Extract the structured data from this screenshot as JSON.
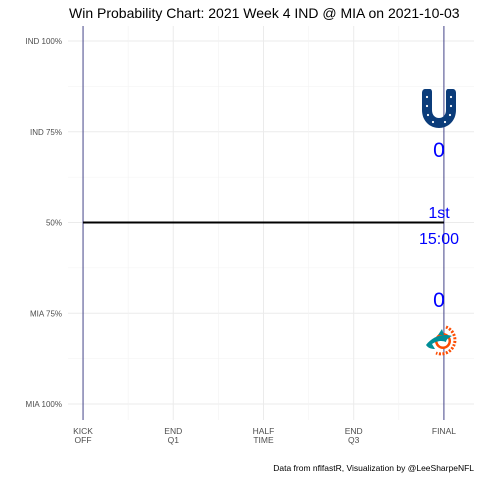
{
  "chart_data": {
    "type": "line",
    "title": "Win Probability Chart: 2021 Week 4 IND @ MIA on 2021-10-03",
    "y_ticks": [
      {
        "label": "IND 100%",
        "value": 1.0
      },
      {
        "label": "IND 75%",
        "value": 0.75
      },
      {
        "label": "50%",
        "value": 0.5
      },
      {
        "label": "MIA 75%",
        "value": 0.25
      },
      {
        "label": "MIA 100%",
        "value": 0.0
      }
    ],
    "ylim": [
      0,
      1
    ],
    "x_ticks": [
      {
        "label": [
          "KICK",
          "OFF"
        ],
        "value": 0
      },
      {
        "label": [
          "END",
          "Q1"
        ],
        "value": 900
      },
      {
        "label": [
          "HALF",
          "TIME"
        ],
        "value": 1800
      },
      {
        "label": [
          "END",
          "Q3"
        ],
        "value": 2700
      },
      {
        "label": [
          "FINAL"
        ],
        "value": 3600
      }
    ],
    "xlim": [
      -150,
      3900
    ],
    "series": [
      {
        "values": [
          {
            "x": 0,
            "y": 0.5
          },
          {
            "x": 3600,
            "y": 0.5
          }
        ]
      }
    ],
    "vlines": [
      0,
      3600
    ],
    "grid": true,
    "colors": {
      "wp_line": "#000000",
      "vline": "#191970",
      "text": "#0000ff",
      "colts": "#0b3c7a",
      "dolphins_aqua": "#008e97",
      "dolphins_orange": "#fc4c02"
    },
    "annotations": {
      "home_score": "0",
      "away_score": "0",
      "quarter": "1st",
      "clock": "15:00"
    },
    "logos": {
      "top": "colts-horseshoe-icon",
      "bottom": "dolphins-logo-icon"
    },
    "caption": "Data from nflfastR, Visualization by @LeeSharpeNFL"
  }
}
